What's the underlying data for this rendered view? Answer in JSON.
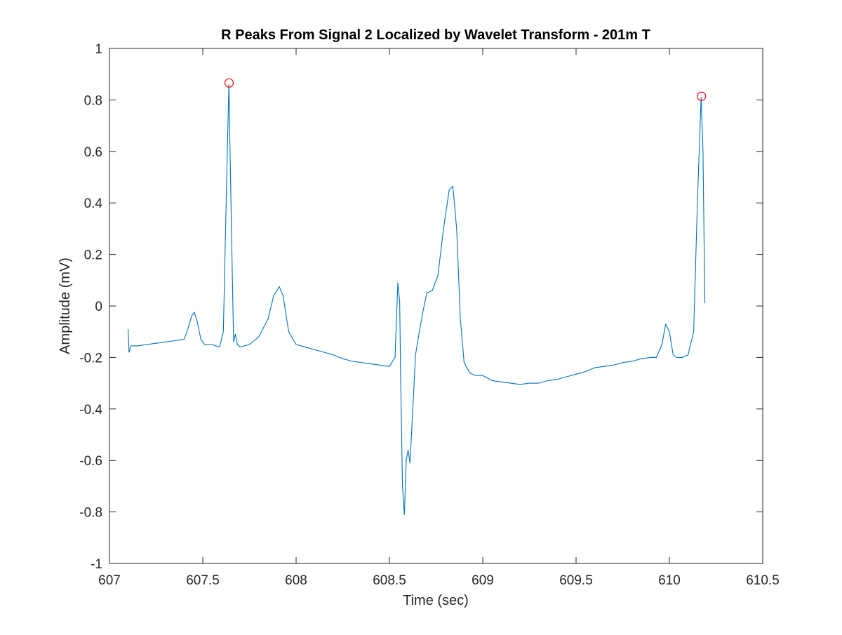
{
  "chart_data": {
    "type": "line",
    "title": "R Peaks From Signal 2 Localized by Wavelet Transform - 201m T",
    "xlabel": "Time (sec)",
    "ylabel": "Amplitude (mV)",
    "xlim": [
      607,
      610.5
    ],
    "ylim": [
      -1,
      1
    ],
    "xticks": [
      607,
      607.5,
      608,
      608.5,
      609,
      609.5,
      610,
      610.5
    ],
    "xtick_labels": [
      "607",
      "607.5",
      "608",
      "608.5",
      "609",
      "609.5",
      "610",
      "610.5"
    ],
    "yticks": [
      -1,
      -0.8,
      -0.6,
      -0.4,
      -0.2,
      0,
      0.2,
      0.4,
      0.6,
      0.8,
      1
    ],
    "ytick_labels": [
      "-1",
      "-0.8",
      "-0.6",
      "-0.4",
      "-0.2",
      "0",
      "0.2",
      "0.4",
      "0.6",
      "0.8",
      "1"
    ],
    "grid": false,
    "box": true,
    "series": [
      {
        "color": "#0072BD",
        "marker": "none",
        "x": [
          607.1,
          607.105,
          607.115,
          607.15,
          607.2,
          607.25,
          607.3,
          607.35,
          607.4,
          607.42,
          607.44,
          607.455,
          607.47,
          607.49,
          607.51,
          607.55,
          607.59,
          607.61,
          607.625,
          607.64,
          607.655,
          607.665,
          607.675,
          607.685,
          607.7,
          607.75,
          607.8,
          607.85,
          607.88,
          607.91,
          607.93,
          607.96,
          608.0,
          608.05,
          608.1,
          608.15,
          608.2,
          608.25,
          608.3,
          608.35,
          608.4,
          608.45,
          608.5,
          608.53,
          608.545,
          608.555,
          608.56,
          608.57,
          608.58,
          608.59,
          608.6,
          608.61,
          608.625,
          608.64,
          608.66,
          608.68,
          608.7,
          608.73,
          608.76,
          608.79,
          608.82,
          608.84,
          608.86,
          608.88,
          608.9,
          608.93,
          608.96,
          609.0,
          609.05,
          609.1,
          609.15,
          609.2,
          609.25,
          609.3,
          609.35,
          609.4,
          609.45,
          609.5,
          609.55,
          609.6,
          609.65,
          609.7,
          609.75,
          609.8,
          609.85,
          609.9,
          609.93,
          609.96,
          609.98,
          610.0,
          610.02,
          610.04,
          610.07,
          610.1,
          610.13,
          610.15,
          610.17,
          610.18,
          610.19
        ],
        "y": [
          -0.09,
          -0.18,
          -0.155,
          -0.155,
          -0.15,
          -0.145,
          -0.14,
          -0.135,
          -0.13,
          -0.09,
          -0.04,
          -0.025,
          -0.06,
          -0.13,
          -0.15,
          -0.15,
          -0.16,
          -0.1,
          0.4,
          0.86,
          0.25,
          -0.14,
          -0.11,
          -0.15,
          -0.16,
          -0.15,
          -0.12,
          -0.05,
          0.04,
          0.075,
          0.04,
          -0.1,
          -0.15,
          -0.16,
          -0.17,
          -0.18,
          -0.19,
          -0.205,
          -0.215,
          -0.22,
          -0.225,
          -0.23,
          -0.235,
          -0.2,
          0.09,
          0.02,
          -0.28,
          -0.7,
          -0.81,
          -0.6,
          -0.56,
          -0.61,
          -0.4,
          -0.19,
          -0.1,
          -0.02,
          0.05,
          0.06,
          0.12,
          0.3,
          0.45,
          0.465,
          0.3,
          -0.05,
          -0.22,
          -0.26,
          -0.27,
          -0.27,
          -0.29,
          -0.295,
          -0.3,
          -0.305,
          -0.3,
          -0.3,
          -0.29,
          -0.285,
          -0.275,
          -0.265,
          -0.255,
          -0.24,
          -0.235,
          -0.23,
          -0.22,
          -0.215,
          -0.205,
          -0.2,
          -0.2,
          -0.15,
          -0.07,
          -0.1,
          -0.19,
          -0.2,
          -0.2,
          -0.19,
          -0.1,
          0.4,
          0.81,
          0.6,
          0.01
        ]
      },
      {
        "color": "#FF0000",
        "marker": "circle",
        "linestyle": "none",
        "x": [
          607.641,
          610.172
        ],
        "y": [
          0.866,
          0.814
        ]
      }
    ]
  }
}
